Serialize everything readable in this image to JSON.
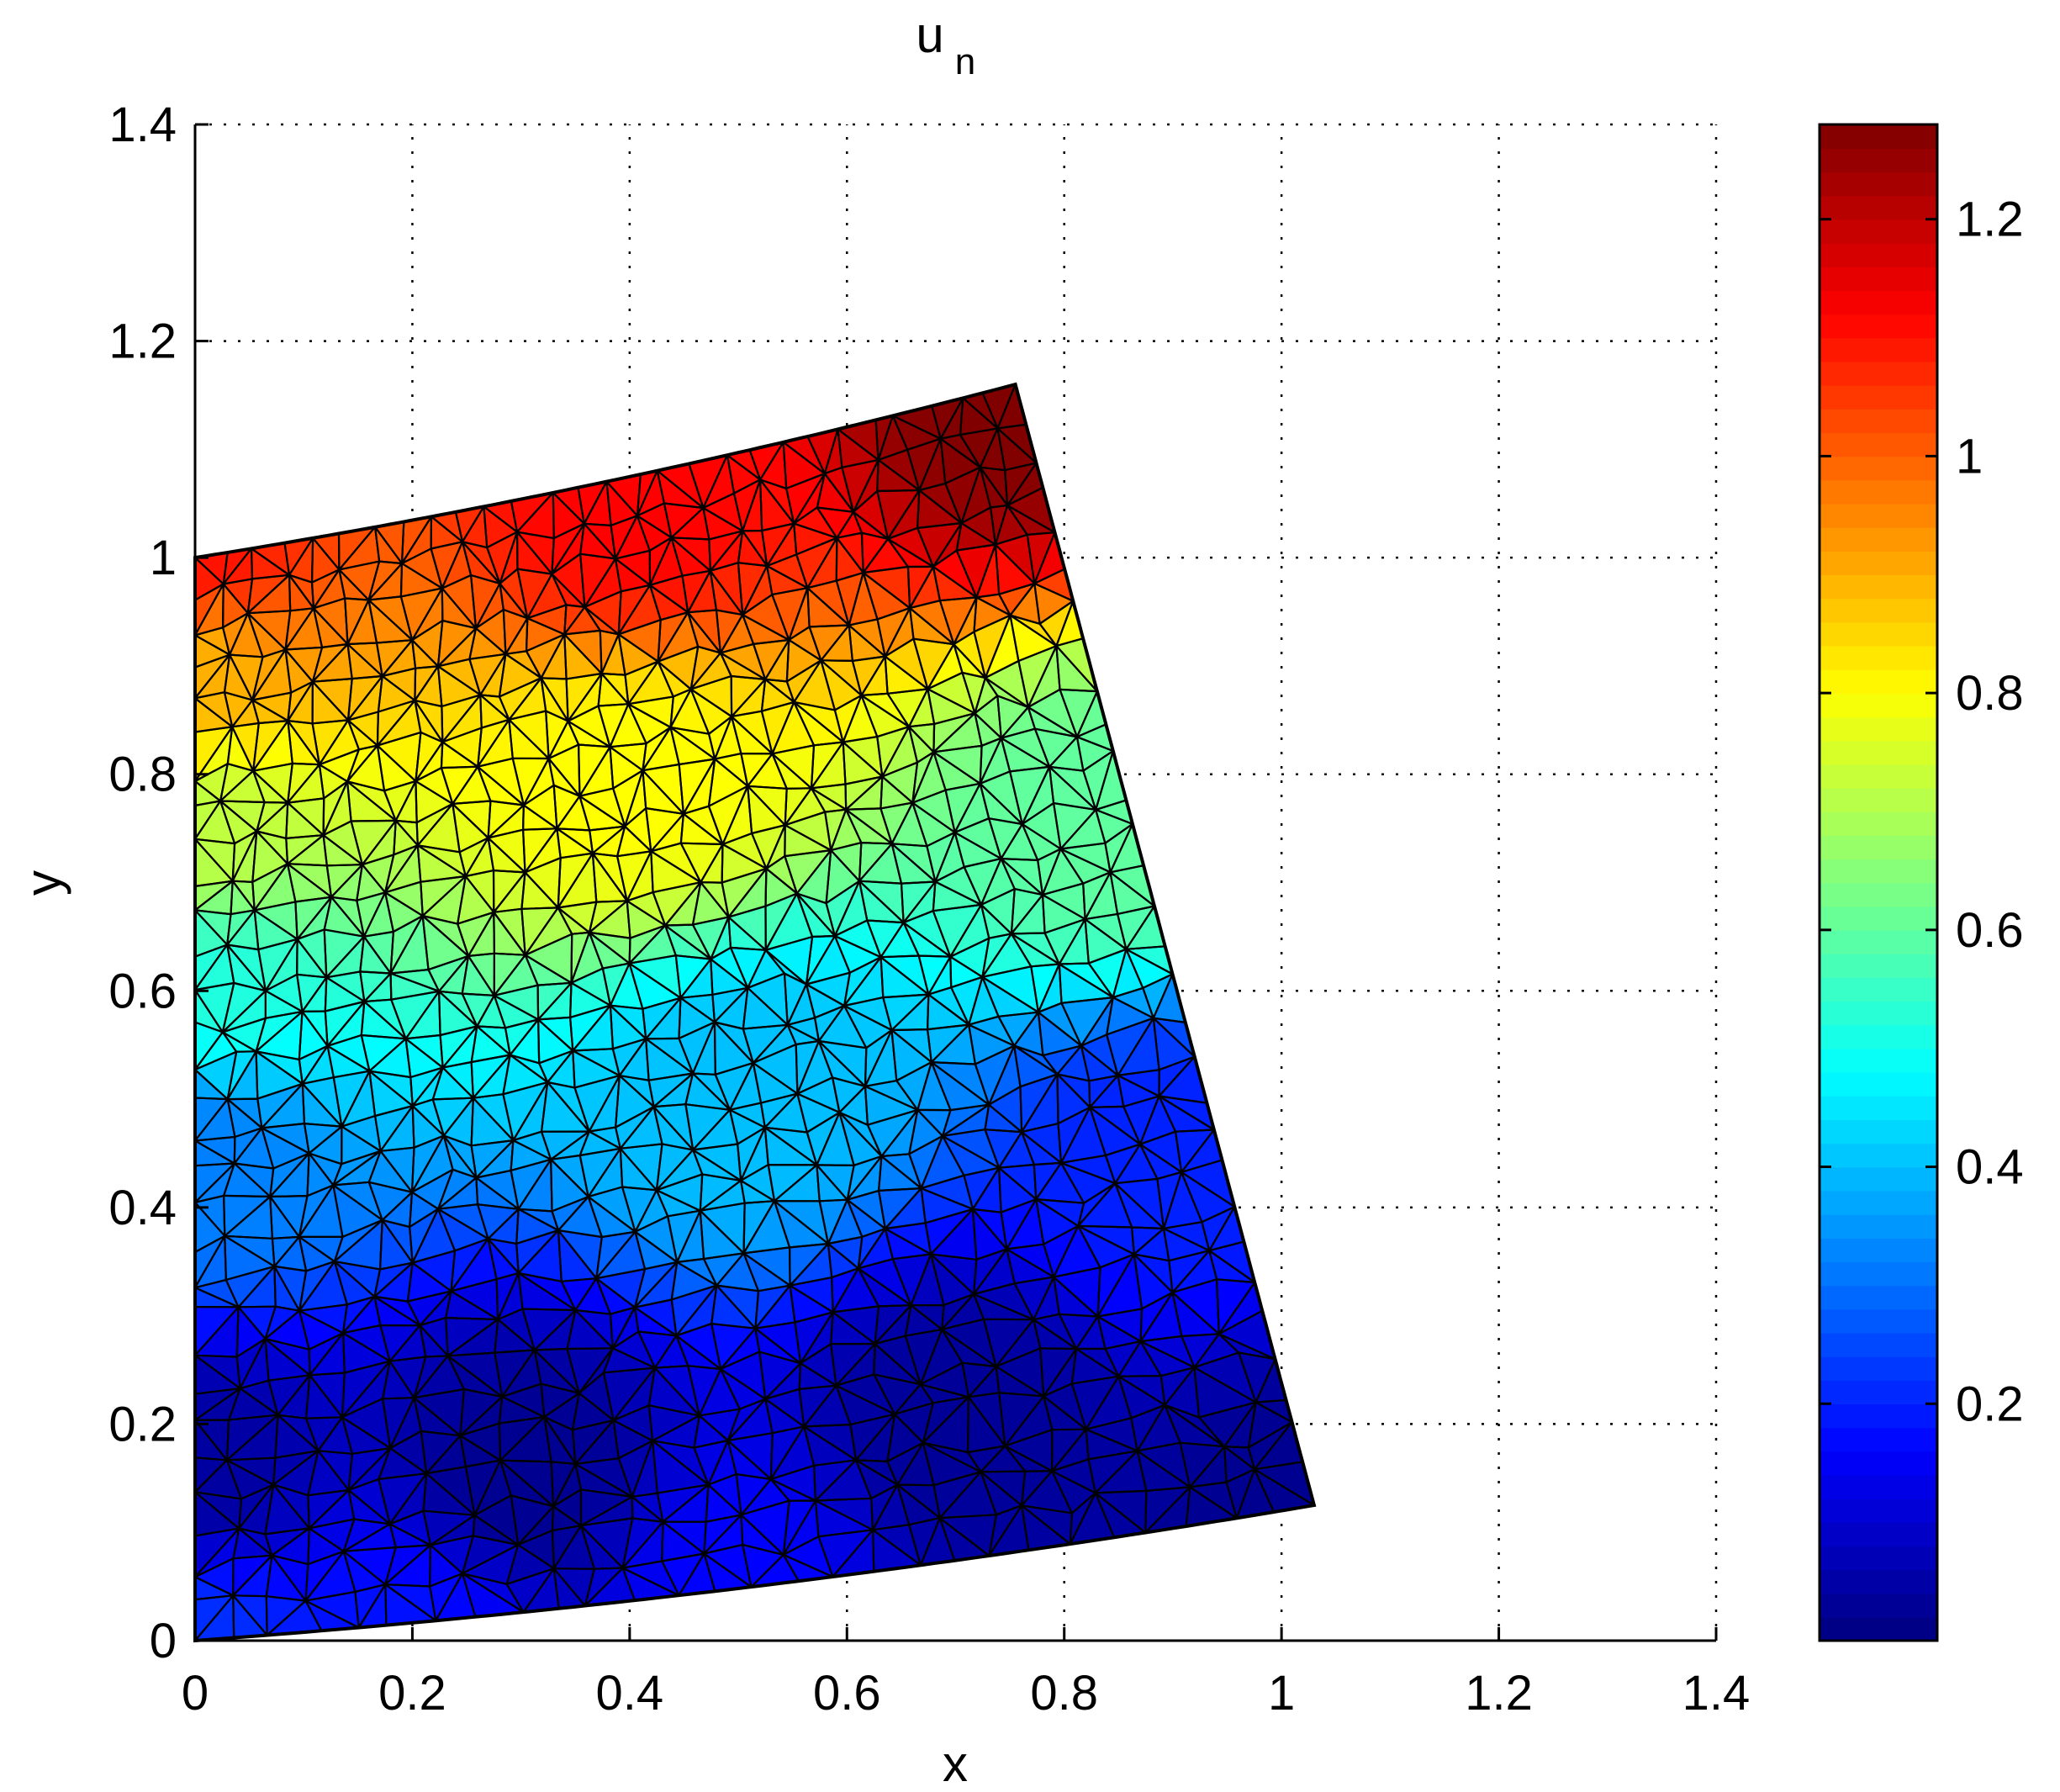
{
  "chart_data": {
    "type": "heatmap",
    "title": "u",
    "title_subscript": "n",
    "xlabel": "x",
    "ylabel": "y",
    "xlim": [
      0,
      1.4
    ],
    "ylim": [
      0,
      1.4
    ],
    "xticks": [
      0,
      0.2,
      0.4,
      0.6,
      0.8,
      1,
      1.2,
      1.4
    ],
    "yticks": [
      0,
      0.2,
      0.4,
      0.6,
      0.8,
      1,
      1.2,
      1.4
    ],
    "xtick_labels": [
      "0",
      "0.2",
      "0.4",
      "0.6",
      "0.8",
      "1",
      "1.2",
      "1.4"
    ],
    "ytick_labels": [
      "0",
      "0.2",
      "0.4",
      "0.6",
      "0.8",
      "1",
      "1.2",
      "1.4"
    ],
    "grid": true,
    "grid_style": "dotted",
    "colormap": "jet",
    "mesh": "triangulated finite element mesh (black edges)",
    "domain_corners": [
      [
        0,
        0
      ],
      [
        1.03,
        0.125
      ],
      [
        0.755,
        1.16
      ],
      [
        0,
        1.0
      ]
    ],
    "field_samples": [
      {
        "x": 0.0,
        "y": 0.0,
        "u": 0.22
      },
      {
        "x": 0.2,
        "y": 0.0,
        "u": 0.18
      },
      {
        "x": 0.5,
        "y": 0.04,
        "u": 0.16
      },
      {
        "x": 1.03,
        "y": 0.125,
        "u": 0.02
      },
      {
        "x": 0.0,
        "y": 0.15,
        "u": 0.04
      },
      {
        "x": 0.3,
        "y": 0.15,
        "u": 0.02
      },
      {
        "x": 0.7,
        "y": 0.2,
        "u": 0.03
      },
      {
        "x": 0.0,
        "y": 0.45,
        "u": 0.32
      },
      {
        "x": 0.5,
        "y": 0.5,
        "u": 0.4
      },
      {
        "x": 0.9,
        "y": 0.45,
        "u": 0.2
      },
      {
        "x": 0.0,
        "y": 0.6,
        "u": 0.52
      },
      {
        "x": 0.0,
        "y": 0.75,
        "u": 0.72
      },
      {
        "x": 0.4,
        "y": 0.8,
        "u": 0.8
      },
      {
        "x": 0.85,
        "y": 0.75,
        "u": 0.6
      },
      {
        "x": 0.0,
        "y": 0.9,
        "u": 0.9
      },
      {
        "x": 0.0,
        "y": 1.0,
        "u": 1.1
      },
      {
        "x": 0.4,
        "y": 1.04,
        "u": 1.12
      },
      {
        "x": 0.755,
        "y": 1.16,
        "u": 1.28
      }
    ],
    "colorbar": {
      "range": [
        0.0,
        1.28
      ],
      "ticks": [
        0.2,
        0.4,
        0.6,
        0.8,
        1,
        1.2
      ],
      "tick_labels": [
        "0.2",
        "0.4",
        "0.6",
        "0.8",
        "1",
        "1.2"
      ]
    }
  }
}
